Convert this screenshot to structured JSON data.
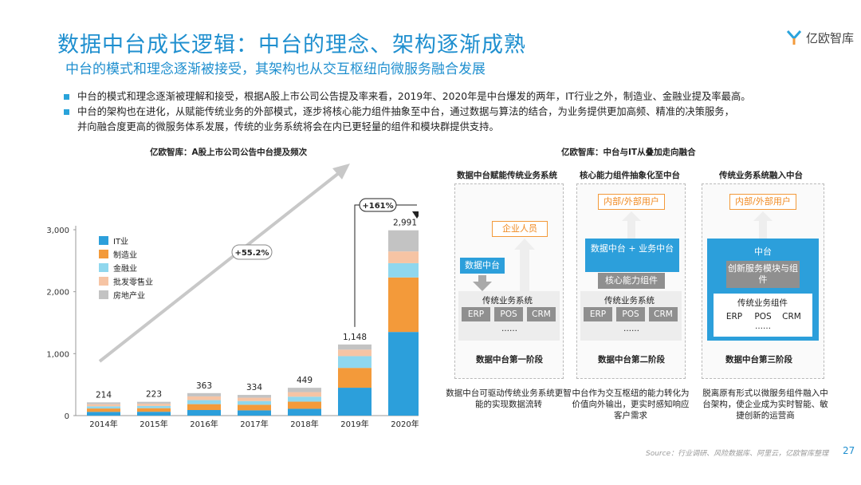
{
  "header": {
    "title": "数据中台成长逻辑：中台的理念、架构逐渐成熟",
    "subtitle": "中台的模式和理念逐渐被接受，其架构也从交互枢纽向微服务融合发展",
    "logo_text": "亿欧智库"
  },
  "bullets": [
    {
      "lines": [
        "中台的模式和理念逐渐被理解和接受，根据A股上市公司公告提及率来看，2019年、2020年是中台爆发的两年，IT行业之外，制造业、金融业提及率最高。"
      ]
    },
    {
      "lines": [
        "中台的架构也在进化，从赋能传统业务的外部模式，逐步将核心能力组件抽象至中台，通过数据与算法的结合，为业务提供更加高频、精准的决策服务，",
        "并向融合度更高的微服务体系发展，传统的业务系统将会在内已更轻量的组件和模块群提供支持。"
      ]
    }
  ],
  "left_chart_title": "亿欧智库：A股上市公司公告中台提及频次",
  "chart_data": {
    "type": "bar",
    "stacked": true,
    "categories": [
      "2014年",
      "2015年",
      "2016年",
      "2017年",
      "2018年",
      "2019年",
      "2020年"
    ],
    "totals": [
      214,
      223,
      363,
      334,
      449,
      1148,
      2991
    ],
    "series": [
      {
        "name": "IT业",
        "color": "#2c9fdb",
        "values": [
          60,
          62,
          90,
          85,
          110,
          450,
          1350
        ]
      },
      {
        "name": "制造业",
        "color": "#f39a3a",
        "values": [
          55,
          58,
          95,
          90,
          115,
          320,
          880
        ]
      },
      {
        "name": "金融业",
        "color": "#8fd7ee",
        "values": [
          35,
          36,
          65,
          60,
          80,
          190,
          230
        ]
      },
      {
        "name": "批发零售业",
        "color": "#f6c4a4",
        "values": [
          34,
          36,
          60,
          54,
          74,
          105,
          190
        ]
      },
      {
        "name": "房地产业",
        "color": "#c3c3c3",
        "values": [
          30,
          31,
          53,
          45,
          70,
          83,
          341
        ]
      }
    ],
    "y_ticks": [
      "0",
      "1,000",
      "2,000",
      "3,000"
    ],
    "ylim": [
      0,
      3000
    ],
    "legend_position": "top-left",
    "annotations": {
      "trend_label": "+55.2%",
      "growth_label": "+161%"
    }
  },
  "right_title": "亿欧智库：中台与IT从叠加走向融合",
  "stages": [
    {
      "title": "数据中台赋能传统业务系统",
      "top_box": "企业人员",
      "middle_box": "数据中台",
      "system_title": "传统业务系统",
      "chips": [
        "ERP",
        "POS",
        "CRM"
      ],
      "dots": "……",
      "footer": "数据中台第一阶段",
      "desc": "数据中台可驱动传统业务系统更智能的实现数据流转"
    },
    {
      "title": "核心能力组件抽象化至中台",
      "top_box": "内部/外部用户",
      "middle_box": "数据中台 + 业务中台",
      "inner_box": "核心能力组件",
      "system_title": "传统业务系统",
      "chips": [
        "ERP",
        "POS",
        "CRM"
      ],
      "dots": "……",
      "footer": "数据中台第二阶段",
      "desc": "中台作为交互枢纽的能力转化为价值向外输出，更实时感知响应客户需求"
    },
    {
      "title": "传统业务系统融入中台",
      "top_box": "内部/外部用户",
      "middle_box": "中台",
      "inner_box": "创新服务模块与组件",
      "system_title": "传统业务组件",
      "chips": [
        "ERP",
        "POS",
        "CRM"
      ],
      "dots": "……",
      "footer": "数据中台第三阶段",
      "desc": "脱离原有形式以微服务组件融入中台架构，使企业成为实时智能、敏捷创新的运营商"
    }
  ],
  "footer": {
    "source": "Source：行业调研、风险数据库、阿里云，亿欧智库整理",
    "page": "27"
  }
}
